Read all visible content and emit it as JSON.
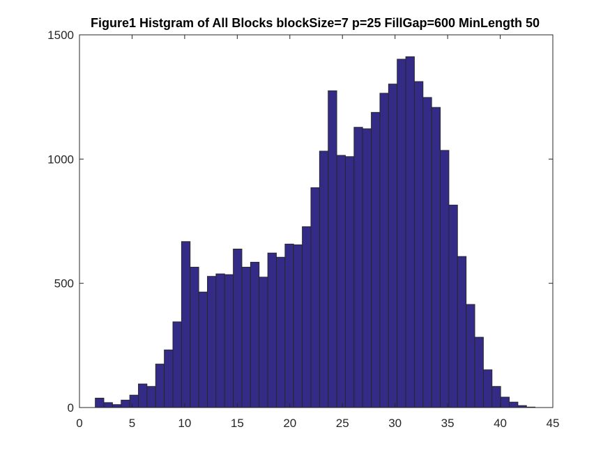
{
  "chart_data": {
    "type": "bar",
    "title": "Figure1 Histgram of All Blocks  blockSize=7 p=25 FillGap=600 MinLength 50",
    "xlabel": "",
    "ylabel": "",
    "xlim": [
      0,
      45
    ],
    "ylim": [
      0,
      1500
    ],
    "grid": false,
    "bar_color": "#332b85",
    "edge_color": "#262626",
    "bin_start": 1.5,
    "bin_width": 0.82,
    "x_ticks": [
      0,
      5,
      10,
      15,
      20,
      25,
      30,
      35,
      40,
      45
    ],
    "y_ticks": [
      0,
      500,
      1000,
      1500
    ],
    "values": [
      38,
      20,
      12,
      30,
      50,
      95,
      85,
      175,
      232,
      345,
      668,
      565,
      465,
      528,
      538,
      535,
      638,
      565,
      585,
      525,
      622,
      605,
      658,
      655,
      728,
      885,
      1032,
      1275,
      1015,
      1010,
      1128,
      1122,
      1188,
      1265,
      1302,
      1402,
      1412,
      1312,
      1248,
      1208,
      1035,
      815,
      608,
      415,
      283,
      152,
      85,
      42,
      22,
      8,
      2
    ]
  }
}
